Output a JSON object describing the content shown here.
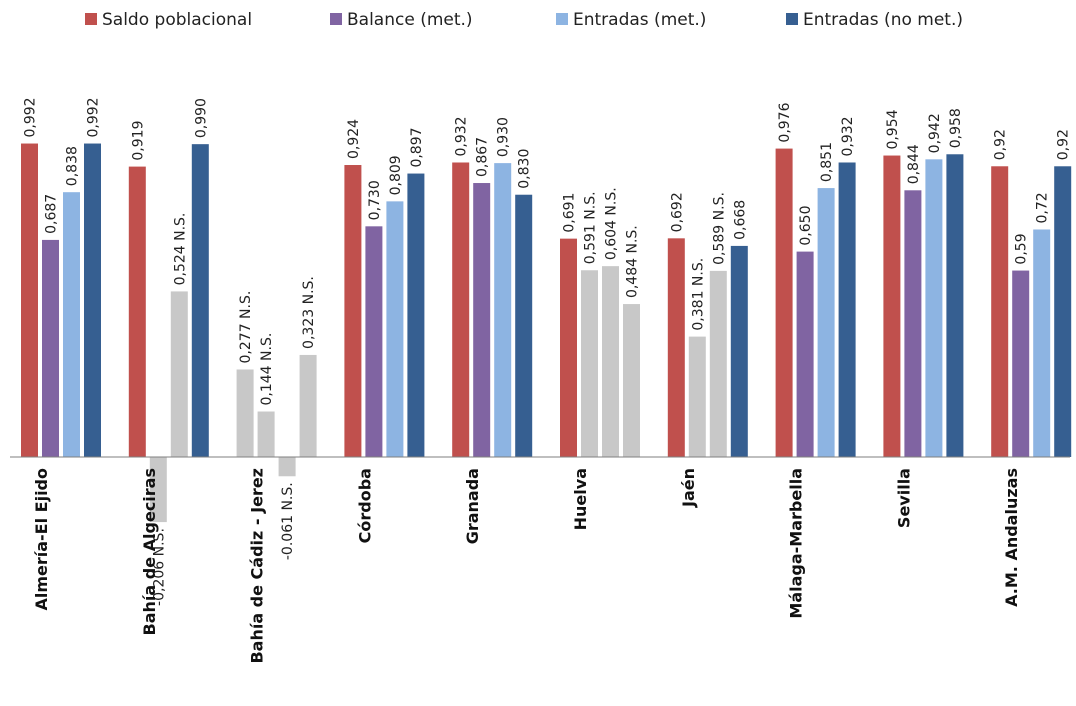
{
  "chart_data": {
    "type": "bar",
    "title": "",
    "xlabel": "",
    "ylabel": "",
    "ylim": [
      -0.35,
      1.1
    ],
    "grid": false,
    "legend_position": "top",
    "categories": [
      "Almería-El Ejido",
      "Bahía de Algeciras",
      "Bahía de Cádiz - Jerez",
      "Córdoba",
      "Granada",
      "Huelva",
      "Jaén",
      "Málaga-Marbella",
      "Sevilla",
      "A.M. Andaluzas"
    ],
    "series": [
      {
        "name": "Saldo poblacional",
        "color": "#C0504D",
        "values": [
          0.992,
          0.919,
          0.277,
          0.924,
          0.932,
          0.691,
          0.692,
          0.976,
          0.954,
          0.92
        ],
        "labels": [
          "0,992",
          "0,919",
          "0,277 N.S.",
          "0,924",
          "0,932",
          "0,691",
          "0,692",
          "0,976",
          "0,954",
          "0,92"
        ],
        "significant": [
          true,
          true,
          false,
          true,
          true,
          true,
          true,
          true,
          true,
          true
        ]
      },
      {
        "name": "Balance (met.)",
        "color": "#8064A2",
        "values": [
          0.687,
          -0.206,
          0.144,
          0.73,
          0.867,
          0.591,
          0.381,
          0.65,
          0.844,
          0.59
        ],
        "labels": [
          "0,687",
          "-0,206 N.S.",
          "0,144 N.S.",
          "0,730",
          "0,867",
          "0,591 N.S.",
          "0,381 N.S.",
          "0,650",
          "0,844",
          "0,59"
        ],
        "significant": [
          true,
          false,
          false,
          true,
          true,
          false,
          false,
          true,
          true,
          true
        ]
      },
      {
        "name": "Entradas (met.)",
        "color": "#8DB4E2",
        "values": [
          0.838,
          0.524,
          -0.061,
          0.809,
          0.93,
          0.604,
          0.589,
          0.851,
          0.942,
          0.72
        ],
        "labels": [
          "0,838",
          "0,524 N.S.",
          "-0.061 N.S.",
          "0,809",
          "0,930",
          "0,604 N.S.",
          "0,589 N.S.",
          "0,851",
          "0,942",
          "0,72"
        ],
        "significant": [
          true,
          false,
          false,
          true,
          true,
          false,
          false,
          true,
          true,
          true
        ]
      },
      {
        "name": "Entradas (no met.)",
        "color": "#365F91",
        "values": [
          0.992,
          0.99,
          0.323,
          0.897,
          0.83,
          0.484,
          0.668,
          0.932,
          0.958,
          0.92
        ],
        "labels": [
          "0,992",
          "0,990",
          "0,323 N.S.",
          "0,897",
          "0,830",
          "0,484 N.S.",
          "0,668",
          "0,932",
          "0,958",
          "0,92"
        ],
        "significant": [
          true,
          true,
          false,
          true,
          true,
          false,
          true,
          true,
          true,
          true
        ]
      }
    ],
    "nonsignificant_color": "#C8C8C8"
  }
}
